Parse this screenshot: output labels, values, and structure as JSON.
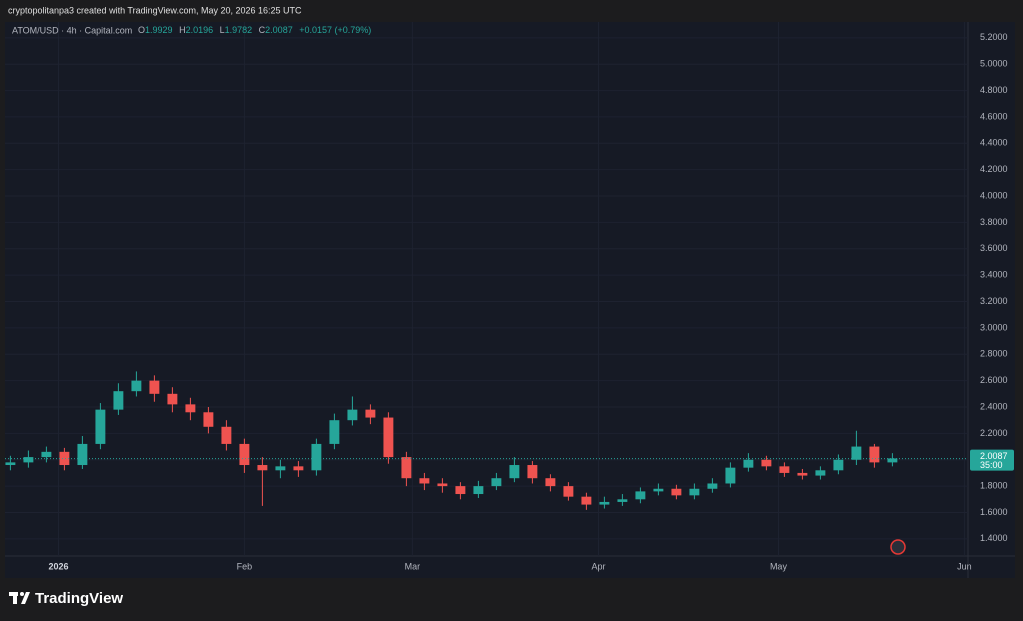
{
  "header": {
    "text": "cryptopolitanpa3 created with TradingView.com, May 20, 2026 16:25 UTC"
  },
  "chart_data": {
    "type": "candlestick",
    "title": "ATOM/USD · 4h · Capital.com",
    "legend": {
      "o_label": "O",
      "o": 1.9929,
      "h_label": "H",
      "h": 2.0196,
      "l_label": "L",
      "l": 1.9782,
      "c_label": "C",
      "c": 2.0087,
      "change": "+0.0157 (+0.79%)"
    },
    "last_price": 2.0087,
    "countdown": "35:00",
    "up_color": "#26a69a",
    "down_color": "#ef5350",
    "categories": [
      null,
      null,
      null,
      null,
      null,
      null,
      null,
      null,
      null,
      null,
      null,
      null,
      null,
      null,
      null,
      null,
      null,
      null,
      null,
      null,
      null,
      null,
      null,
      null,
      null,
      null,
      null,
      null,
      null,
      null,
      null,
      null,
      null,
      null,
      null,
      null,
      null,
      null,
      null,
      null,
      null,
      null,
      null,
      null,
      null,
      null,
      null,
      null,
      null,
      null
    ],
    "open": [
      1.96,
      1.98,
      2.02,
      2.06,
      1.96,
      2.12,
      2.38,
      2.52,
      2.6,
      2.5,
      2.42,
      2.36,
      2.25,
      2.12,
      1.96,
      1.92,
      1.95,
      1.92,
      2.12,
      2.3,
      2.38,
      2.32,
      2.02,
      1.86,
      1.82,
      1.8,
      1.74,
      1.8,
      1.86,
      1.96,
      1.86,
      1.8,
      1.72,
      1.66,
      1.68,
      1.7,
      1.76,
      1.78,
      1.73,
      1.78,
      1.82,
      1.94,
      2.0,
      1.95,
      1.9,
      1.88,
      1.92,
      2.0,
      2.1,
      1.98
    ],
    "high": [
      2.03,
      2.07,
      2.1,
      2.09,
      2.18,
      2.43,
      2.58,
      2.67,
      2.64,
      2.55,
      2.47,
      2.4,
      2.3,
      2.16,
      2.02,
      2.0,
      1.99,
      2.16,
      2.35,
      2.48,
      2.42,
      2.36,
      2.06,
      1.9,
      1.86,
      1.83,
      1.84,
      1.9,
      2.02,
      1.99,
      1.89,
      1.83,
      1.75,
      1.72,
      1.74,
      1.79,
      1.82,
      1.81,
      1.82,
      1.86,
      1.98,
      2.05,
      2.03,
      1.98,
      1.93,
      1.95,
      2.04,
      2.22,
      2.12,
      2.05
    ],
    "low": [
      1.92,
      1.94,
      1.98,
      1.92,
      1.93,
      2.08,
      2.34,
      2.48,
      2.44,
      2.36,
      2.3,
      2.2,
      2.07,
      1.9,
      1.65,
      1.86,
      1.87,
      1.88,
      2.08,
      2.26,
      2.27,
      1.97,
      1.8,
      1.77,
      1.75,
      1.7,
      1.71,
      1.77,
      1.83,
      1.82,
      1.76,
      1.69,
      1.62,
      1.63,
      1.65,
      1.67,
      1.73,
      1.7,
      1.7,
      1.75,
      1.79,
      1.91,
      1.92,
      1.87,
      1.85,
      1.85,
      1.89,
      1.96,
      1.94,
      1.95
    ],
    "close": [
      1.98,
      2.02,
      2.06,
      1.96,
      2.12,
      2.38,
      2.52,
      2.6,
      2.5,
      2.42,
      2.36,
      2.25,
      2.12,
      1.96,
      1.92,
      1.95,
      1.92,
      2.12,
      2.3,
      2.38,
      2.32,
      2.02,
      1.86,
      1.82,
      1.8,
      1.74,
      1.8,
      1.86,
      1.96,
      1.86,
      1.8,
      1.72,
      1.66,
      1.68,
      1.7,
      1.76,
      1.78,
      1.73,
      1.78,
      1.82,
      1.94,
      2.0,
      1.95,
      1.9,
      1.88,
      1.92,
      2.0,
      2.1,
      1.98,
      2.01
    ],
    "xlim": [
      -0.3,
      53.2
    ],
    "xticks": [
      {
        "value": 2.67,
        "label": "2026"
      },
      {
        "value": 13,
        "label": "Feb"
      },
      {
        "value": 22.33,
        "label": "Mar"
      },
      {
        "value": 32.67,
        "label": "Apr"
      },
      {
        "value": 42.67,
        "label": "May"
      },
      {
        "value": 53,
        "label": "Jun"
      }
    ],
    "ylim": [
      1.27,
      5.32
    ],
    "yticks": [
      {
        "value": 1.4,
        "label": "1.4000"
      },
      {
        "value": 1.6,
        "label": "1.6000"
      },
      {
        "value": 1.8,
        "label": "1.8000"
      },
      {
        "value": 2.0,
        "label": "2.0000"
      },
      {
        "value": 2.2,
        "label": "2.2000"
      },
      {
        "value": 2.4,
        "label": "2.4000"
      },
      {
        "value": 2.6,
        "label": "2.6000"
      },
      {
        "value": 2.8,
        "label": "2.8000"
      },
      {
        "value": 3.0,
        "label": "3.0000"
      },
      {
        "value": 3.2,
        "label": "3.2000"
      },
      {
        "value": 3.4,
        "label": "3.4000"
      },
      {
        "value": 3.6,
        "label": "3.6000"
      },
      {
        "value": 3.8,
        "label": "3.8000"
      },
      {
        "value": 4.0,
        "label": "4.0000"
      },
      {
        "value": 4.2,
        "label": "4.2000"
      },
      {
        "value": 4.4,
        "label": "4.4000"
      },
      {
        "value": 4.6,
        "label": "4.6000"
      },
      {
        "value": 4.8,
        "label": "4.8000"
      },
      {
        "value": 5.0,
        "label": "5.0000"
      },
      {
        "value": 5.2,
        "label": "5.2000"
      }
    ],
    "grid": true
  },
  "footer": {
    "brand": "TradingView"
  }
}
